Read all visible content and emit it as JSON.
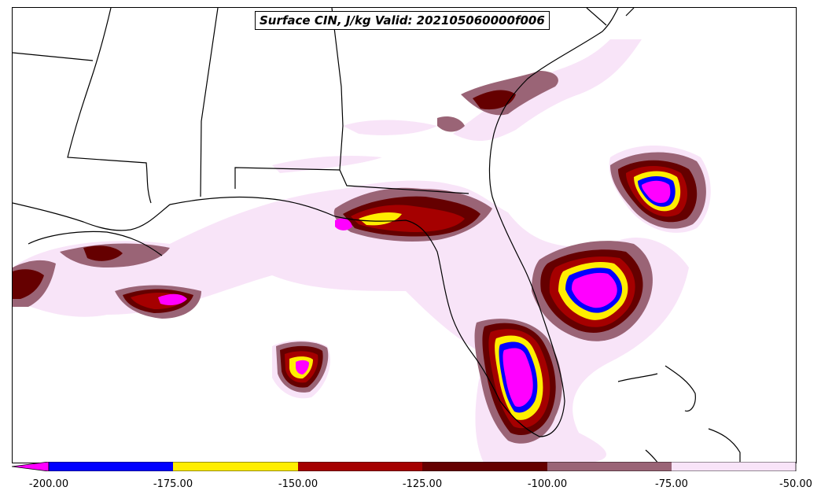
{
  "title": "Surface CIN, J/kg Valid: 202105060000f006",
  "colorbar": {
    "ticks": [
      "-200.00",
      "-175.00",
      "-150.00",
      "-125.00",
      "-100.00",
      "-75.00",
      "-50.00"
    ],
    "extend_color": "#ff00ff",
    "colors": [
      "#0000ff",
      "#ffee00",
      "#a50000",
      "#650000",
      "#9a6476",
      "#f8e4f8"
    ]
  },
  "palette": {
    "background": "#ffffff",
    "coastline": "#000000",
    "cin_levels": {
      "below_-200": "#ff00ff",
      "-200_to_-175": "#0000ff",
      "-175_to_-150": "#ffee00",
      "-150_to_-125": "#a50000",
      "-125_to_-100": "#650000",
      "-100_to_-75": "#9a6476",
      "-75_to_-50": "#f8e4f8"
    }
  }
}
